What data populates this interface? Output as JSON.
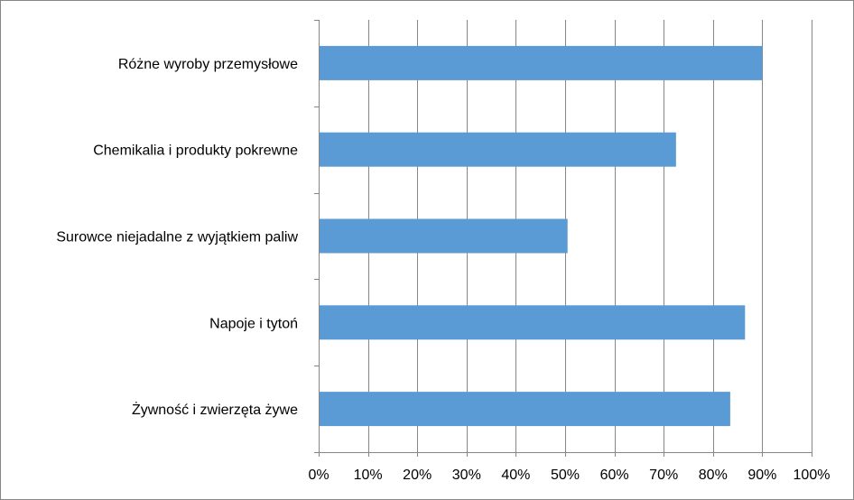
{
  "chart_data": {
    "type": "bar",
    "orientation": "horizontal",
    "categories": [
      "Różne wyroby przemysłowe",
      "Chemikalia i produkty pokrewne",
      "Surowce niejadalne z wyjątkiem paliw",
      "Napoje i tytoń",
      "Żywność i zwierzęta żywe"
    ],
    "values": [
      90,
      72.5,
      50.5,
      86.5,
      83.5
    ],
    "unit": "%",
    "xlim": [
      0,
      100
    ],
    "x_ticks": [
      "0%",
      "10%",
      "20%",
      "30%",
      "40%",
      "50%",
      "60%",
      "70%",
      "80%",
      "90%",
      "100%"
    ],
    "grid": "vertical",
    "legend": "none",
    "bar_color": "#5B9BD5",
    "grid_color": "#868686"
  }
}
